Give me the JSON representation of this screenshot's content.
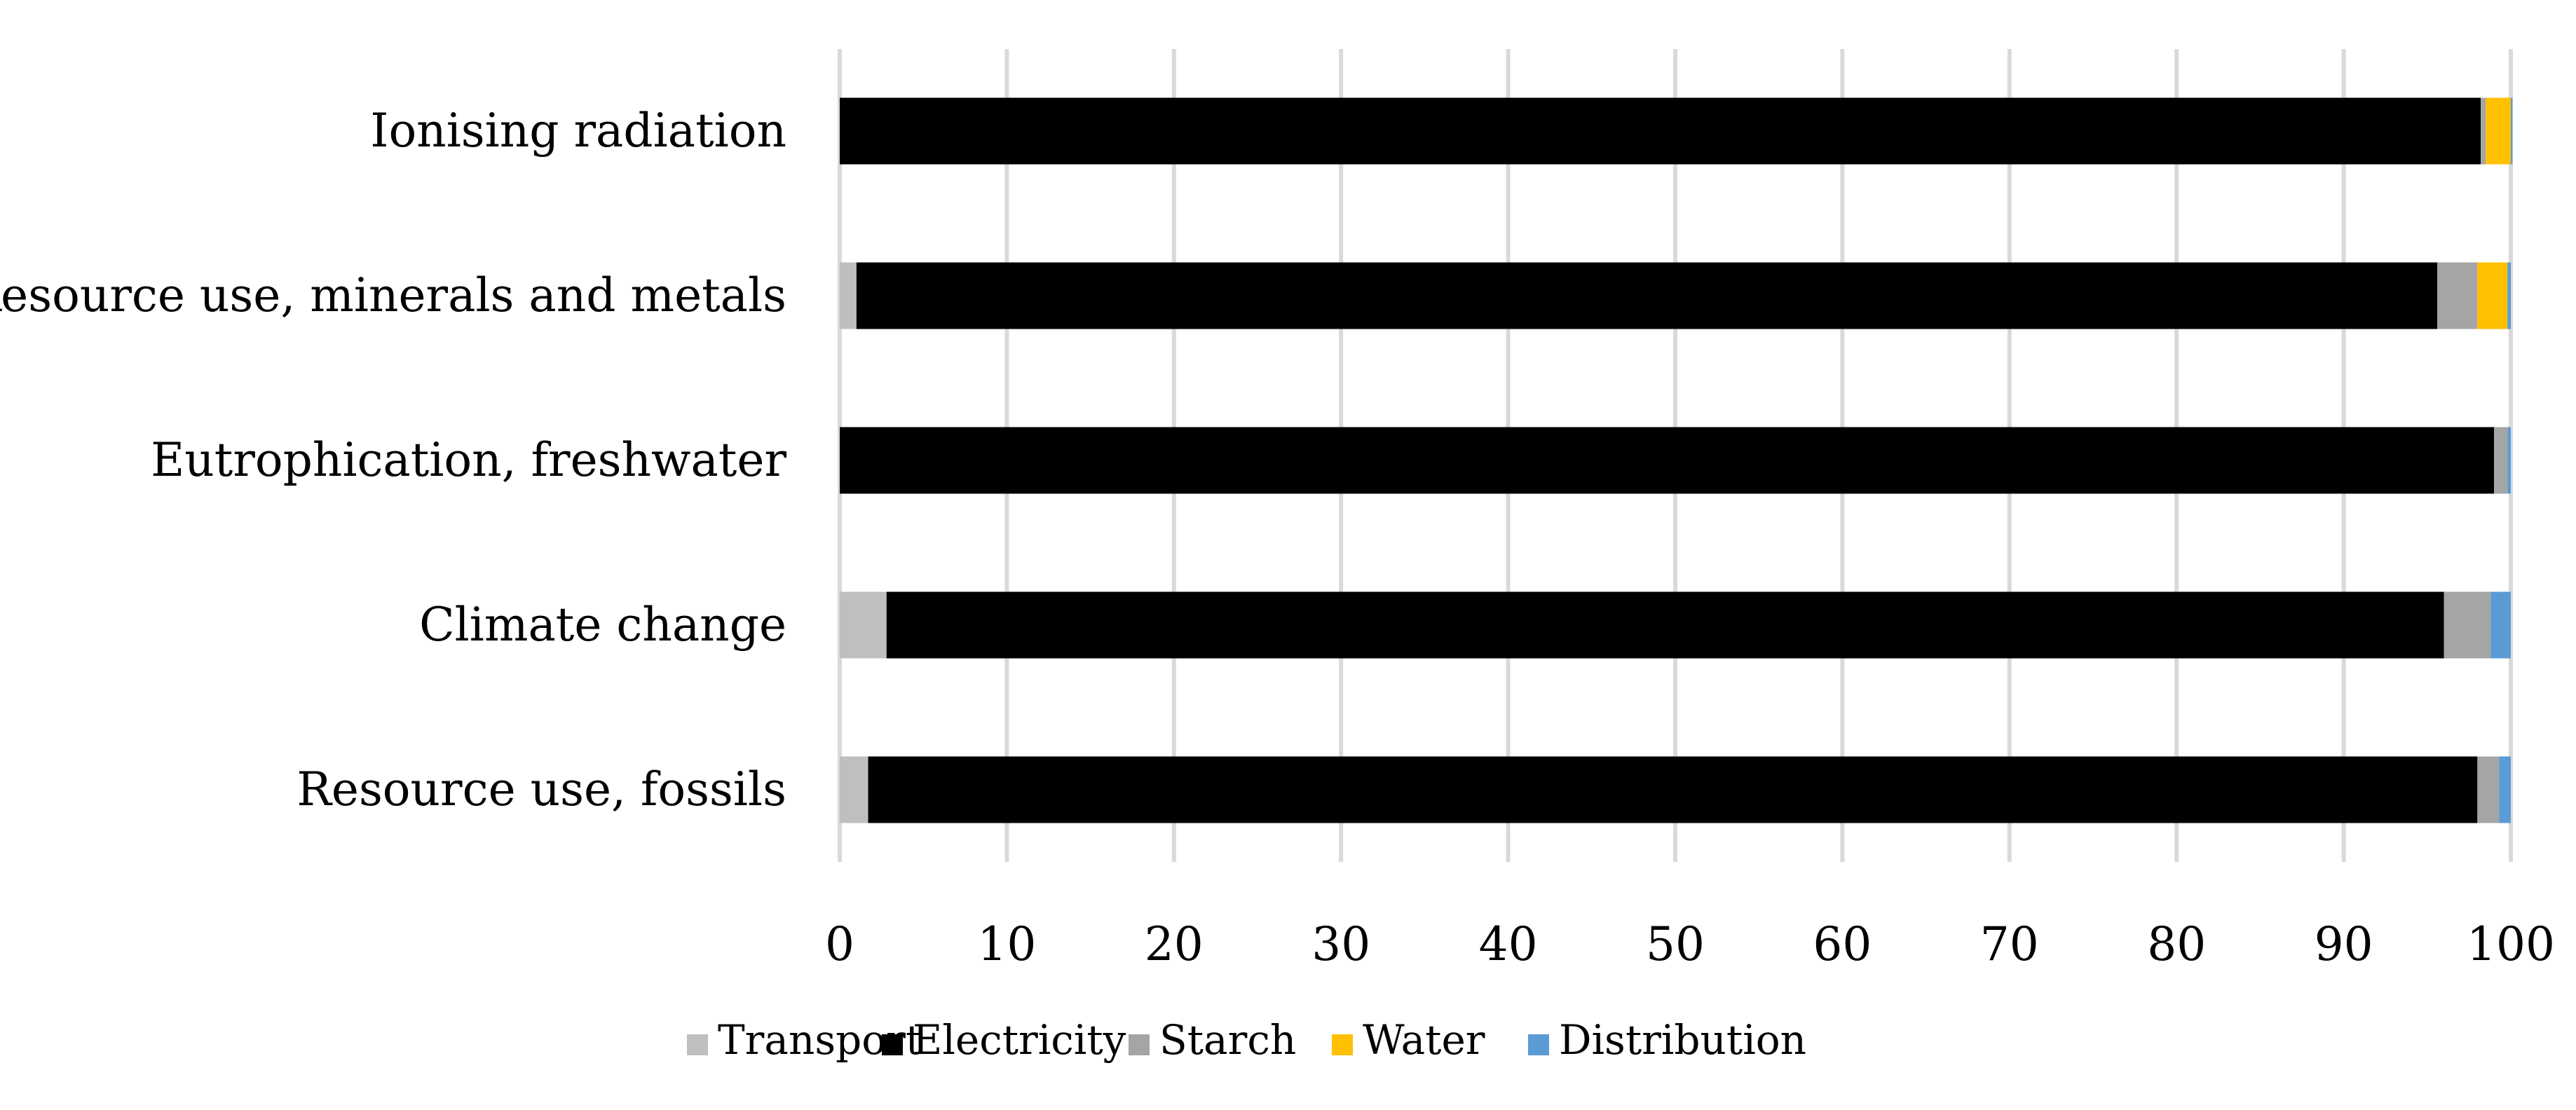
{
  "chart_data": {
    "type": "bar",
    "orientation": "horizontal",
    "stacked": true,
    "title": "",
    "xlabel": "",
    "ylabel": "",
    "categories": [
      "Ionising radiation",
      "Resource use, minerals and metals",
      "Eutrophication, freshwater",
      "Climate change",
      "Resource use, fossils"
    ],
    "series": [
      {
        "name": "Transport",
        "color": "#bfbfbf",
        "values": [
          0.0,
          1.0,
          0.0,
          2.8,
          1.7
        ]
      },
      {
        "name": "Electricity",
        "color": "#000000",
        "values": [
          98.2,
          94.6,
          99.0,
          93.2,
          96.3
        ]
      },
      {
        "name": "Starch",
        "color": "#a5a5a5",
        "values": [
          0.3,
          2.4,
          0.8,
          2.8,
          1.3
        ]
      },
      {
        "name": "Water",
        "color": "#ffc000",
        "values": [
          1.5,
          1.8,
          0.0,
          0.0,
          0.0
        ]
      },
      {
        "name": "Distribution",
        "color": "#5b9bd5",
        "values": [
          0.1,
          0.2,
          0.2,
          1.2,
          0.7
        ]
      }
    ],
    "xlim": [
      0,
      100
    ],
    "xticks": [
      "0",
      "10",
      "20",
      "30",
      "40",
      "50",
      "60",
      "70",
      "80",
      "90",
      "100"
    ],
    "grid": true,
    "legend_position": "bottom"
  }
}
